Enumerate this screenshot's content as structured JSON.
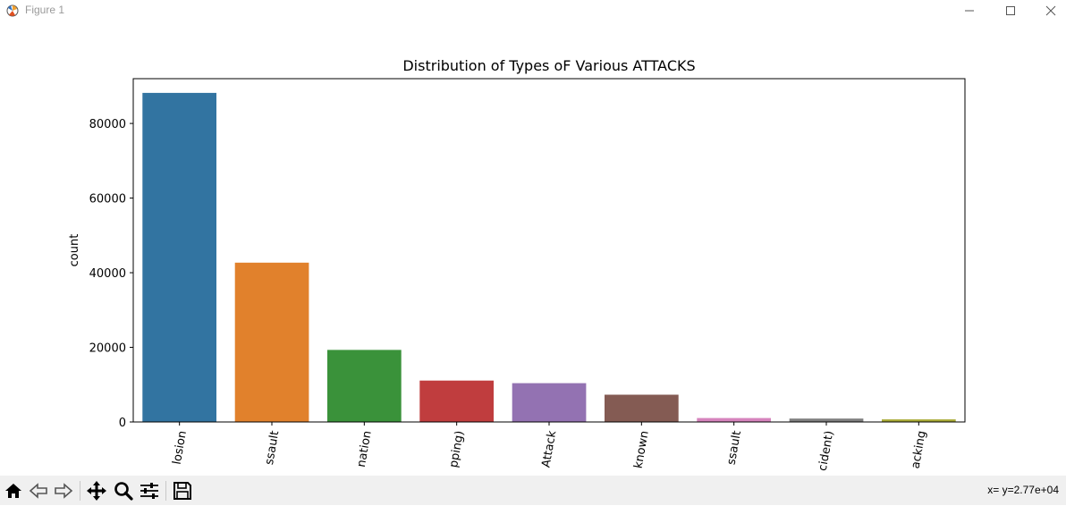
{
  "window": {
    "title": "Figure 1"
  },
  "toolbar": {
    "buttons": [
      "home-icon",
      "back-arrow-icon",
      "forward-arrow-icon",
      "pan-icon",
      "zoom-icon",
      "subplots-icon",
      "save-icon"
    ],
    "coords": "x= y=2.77e+04"
  },
  "chart_data": {
    "type": "bar",
    "title": "Distribution of Types oF Various ATTACKS",
    "xlabel": "",
    "ylabel": "count",
    "ylim": [
      0,
      92000
    ],
    "yticks": [
      0,
      20000,
      40000,
      60000,
      80000
    ],
    "categories": [
      "losion",
      "ssault",
      "nation",
      "pping)",
      "Attack",
      "known",
      "ssault",
      "cident)",
      "acking"
    ],
    "values": [
      88200,
      42700,
      19300,
      11100,
      10400,
      7300,
      1050,
      900,
      700
    ],
    "colors": [
      "#3274a1",
      "#e1812c",
      "#3a923a",
      "#c03d3e",
      "#9372b2",
      "#845b53",
      "#d684bd",
      "#7f7f7f",
      "#a9aa35"
    ],
    "grid": false,
    "legend": "none"
  }
}
